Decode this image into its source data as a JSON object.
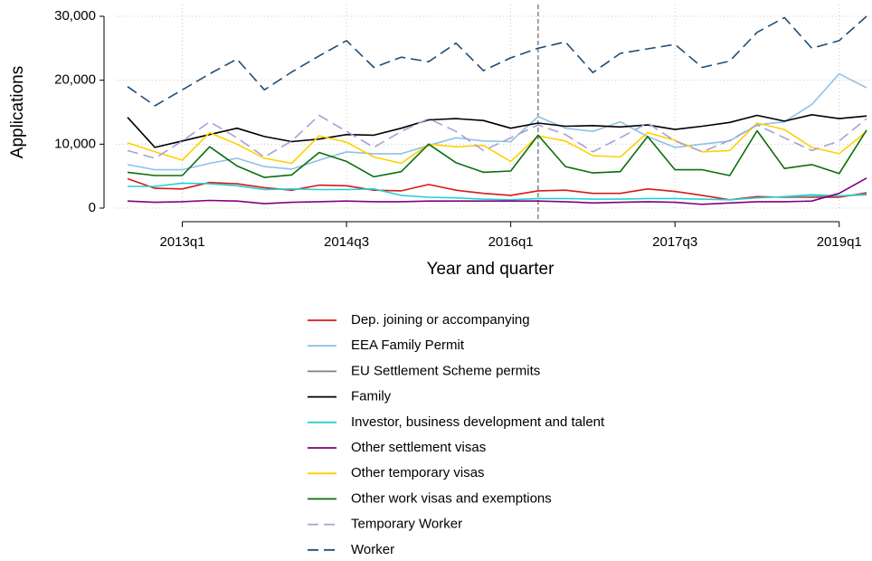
{
  "chart_data": {
    "type": "line",
    "x_label": "Year and quarter",
    "y_label": "Applications",
    "categories": [
      null,
      null,
      "2013q1",
      null,
      null,
      null,
      null,
      null,
      "2014q3",
      null,
      null,
      null,
      null,
      null,
      "2016q1",
      null,
      null,
      null,
      null,
      null,
      "2017q3",
      null,
      null,
      null,
      null,
      null,
      "2019q1",
      null
    ],
    "ylim": [
      0,
      30000
    ],
    "yticks": [
      0,
      {
        "value": 10000,
        "label": "10,000"
      },
      {
        "value": 20000,
        "label": "20,000"
      },
      {
        "value": 30000,
        "label": "30,000"
      }
    ],
    "grid": true,
    "vline": 15,
    "legend": "bottom",
    "series": [
      {
        "name": "Dep. joining or accompanying",
        "color": "#d7191c",
        "values": [
          4600,
          3100,
          3000,
          4000,
          3800,
          3200,
          2800,
          3600,
          3500,
          2800,
          2700,
          3700,
          2800,
          2300,
          2000,
          2700,
          2800,
          2300,
          2300,
          3000,
          2600,
          2000,
          1300,
          1800,
          1700,
          1700,
          1700,
          2400
        ]
      },
      {
        "name": "EEA Family Permit",
        "color": "#8ec1e6",
        "values": [
          6800,
          6000,
          6000,
          7000,
          7800,
          6500,
          6100,
          7500,
          8800,
          8500,
          8500,
          9800,
          11000,
          10500,
          10400,
          14300,
          12500,
          12000,
          13500,
          11200,
          9500,
          10000,
          10500,
          13000,
          13500,
          16200,
          21000,
          18800
        ]
      },
      {
        "name": "EU Settlement Scheme permits",
        "color": "#808080",
        "values": [
          null,
          null,
          null,
          null,
          null,
          null,
          null,
          null,
          null,
          null,
          null,
          null,
          null,
          null,
          null,
          null,
          null,
          null,
          null,
          null,
          null,
          null,
          null,
          null,
          1700,
          1800,
          1900,
          2100
        ]
      },
      {
        "name": "Family",
        "color": "#000000",
        "values": [
          14200,
          9500,
          10500,
          11500,
          12500,
          11200,
          10400,
          10800,
          11500,
          11400,
          12500,
          13800,
          14000,
          13700,
          12500,
          13300,
          12800,
          12900,
          12700,
          13000,
          12300,
          12800,
          13400,
          14500,
          13600,
          14600,
          14000,
          14400
        ]
      },
      {
        "name": "Investor, business development and talent",
        "color": "#26d0d0",
        "values": [
          3400,
          3400,
          3900,
          3800,
          3500,
          2900,
          3000,
          2900,
          2900,
          3000,
          2000,
          1700,
          1600,
          1400,
          1300,
          1500,
          1500,
          1400,
          1400,
          1500,
          1500,
          1400,
          1300,
          1600,
          1800,
          2100,
          1900,
          2200
        ]
      },
      {
        "name": "Other settlement visas",
        "color": "#800080",
        "values": [
          1100,
          900,
          1000,
          1200,
          1100,
          700,
          900,
          1000,
          1100,
          1000,
          1000,
          1100,
          1100,
          1100,
          1100,
          1100,
          1000,
          800,
          900,
          1000,
          900,
          600,
          800,
          1000,
          1000,
          1100,
          2300,
          4700
        ]
      },
      {
        "name": "Other temporary visas",
        "color": "#ffd000",
        "values": [
          10200,
          8800,
          7500,
          11800,
          10000,
          7800,
          7000,
          11300,
          10300,
          8000,
          7000,
          10000,
          9600,
          9800,
          7300,
          11300,
          10500,
          8200,
          8000,
          11800,
          10600,
          8800,
          9000,
          13300,
          12300,
          9500,
          8500,
          12000
        ]
      },
      {
        "name": "Other work visas and exemptions",
        "color": "#0a6e0a",
        "values": [
          5600,
          5100,
          5100,
          9600,
          6600,
          4800,
          5200,
          8700,
          7300,
          4900,
          5700,
          10000,
          7100,
          5600,
          5800,
          11400,
          6500,
          5500,
          5700,
          11200,
          6000,
          6000,
          5100,
          12100,
          6200,
          6800,
          5400,
          12200
        ]
      },
      {
        "name": "Temporary Worker",
        "color": "#a8a0d8",
        "dashed": true,
        "values": [
          9000,
          7800,
          10500,
          13500,
          11000,
          8000,
          10500,
          14500,
          12000,
          9500,
          12000,
          14000,
          12000,
          9000,
          11000,
          13000,
          11500,
          8800,
          11000,
          13300,
          10500,
          8800,
          10600,
          13000,
          11000,
          9000,
          10500,
          14000
        ]
      },
      {
        "name": "Worker",
        "color": "#1f4e79",
        "dashed": true,
        "values": [
          19000,
          16000,
          18500,
          21000,
          23300,
          18500,
          21300,
          23800,
          26200,
          22000,
          23600,
          22900,
          25800,
          21500,
          23500,
          25000,
          26000,
          21200,
          24200,
          24900,
          25600,
          22000,
          23000,
          27500,
          29800,
          25000,
          26200,
          30000
        ]
      }
    ]
  }
}
